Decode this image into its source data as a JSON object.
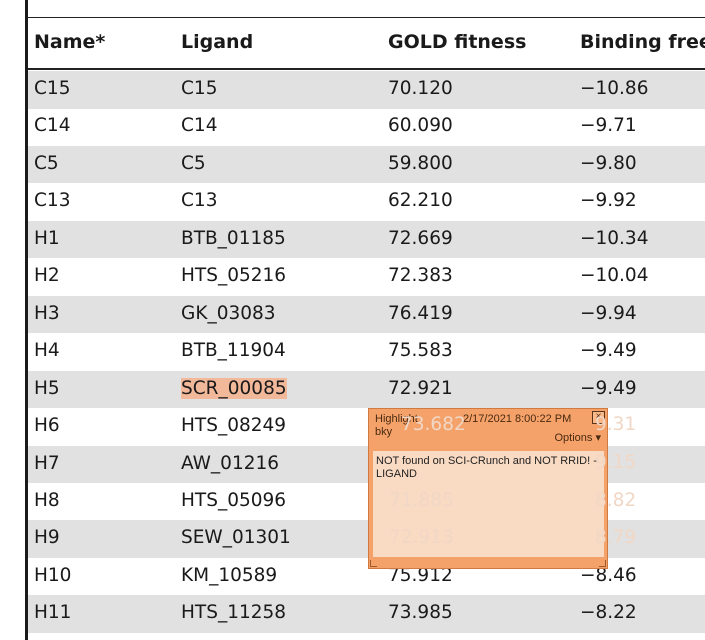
{
  "table": {
    "headers": {
      "name": "Name*",
      "ligand": "Ligand",
      "gold": "GOLD fitness",
      "binding": "Binding free"
    },
    "rows": [
      {
        "name": "C15",
        "ligand": "C15",
        "gold": "70.120",
        "binding": "−10.86"
      },
      {
        "name": "C14",
        "ligand": "C14",
        "gold": "60.090",
        "binding": "−9.71"
      },
      {
        "name": "C5",
        "ligand": "C5",
        "gold": "59.800",
        "binding": "−9.80"
      },
      {
        "name": "C13",
        "ligand": "C13",
        "gold": "62.210",
        "binding": "−9.92"
      },
      {
        "name": "H1",
        "ligand": "BTB_01185",
        "gold": "72.669",
        "binding": "−10.34"
      },
      {
        "name": "H2",
        "ligand": "HTS_05216",
        "gold": "72.383",
        "binding": "−10.04"
      },
      {
        "name": "H3",
        "ligand": "GK_03083",
        "gold": "76.419",
        "binding": "−9.94"
      },
      {
        "name": "H4",
        "ligand": "BTB_11904",
        "gold": "75.583",
        "binding": "−9.49"
      },
      {
        "name": "H5",
        "ligand": "SCR_00085",
        "gold": "72.921",
        "binding": "−9.49"
      },
      {
        "name": "H6",
        "ligand": "HTS_08249",
        "gold": "",
        "binding": ""
      },
      {
        "name": "H7",
        "ligand": "AW_01216",
        "gold": "",
        "binding": ""
      },
      {
        "name": "H8",
        "ligand": "HTS_05096",
        "gold": "",
        "binding": ""
      },
      {
        "name": "H9",
        "ligand": "SEW_01301",
        "gold": "",
        "binding": ""
      },
      {
        "name": "H10",
        "ligand": "KM_10589",
        "gold": "75.912",
        "binding": "−8.46"
      },
      {
        "name": "H11",
        "ligand": "HTS_11258",
        "gold": "73.985",
        "binding": "−8.22"
      }
    ],
    "highlighted_ligand_color": "#f2b89a"
  },
  "note": {
    "title": "Highlight",
    "author": "bky",
    "date": "2/17/2021 8:00:22 PM",
    "close": "×",
    "options": "Options ▾",
    "text": "NOT found on SCI-CRunch and NOT RRID! - LIGAND",
    "bleed": [
      {
        "gold": "73.682",
        "binding": "9.31"
      },
      {
        "gold": "",
        "binding": "9.15"
      },
      {
        "gold": "71.885",
        "binding": "8.82"
      },
      {
        "gold": "72.913",
        "binding": "8.79"
      }
    ],
    "color": "#f5a26a"
  }
}
